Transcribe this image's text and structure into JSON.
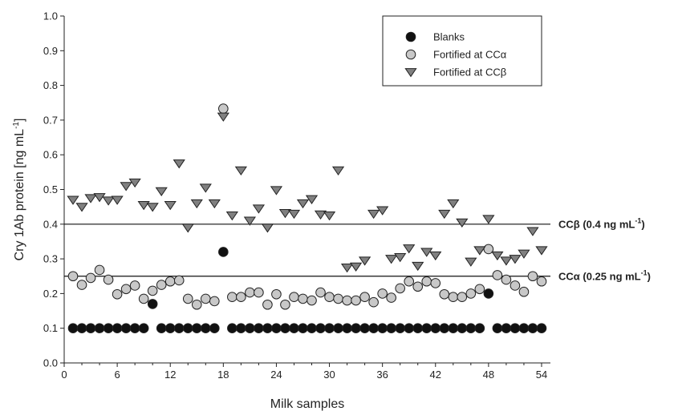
{
  "chart_data": {
    "type": "scatter",
    "xlabel": "Milk samples",
    "ylabel": "Cry 1Ab protein [ng mL",
    "ylabel_sup": "-1",
    "ylabel_close": "]",
    "xlim": [
      0,
      55
    ],
    "ylim": [
      0,
      1.0
    ],
    "xticks": [
      0,
      6,
      12,
      18,
      24,
      30,
      36,
      42,
      48,
      54
    ],
    "yticks": [
      "0.0",
      "0.1",
      "0.2",
      "0.3",
      "0.4",
      "0.5",
      "0.6",
      "0.7",
      "0.8",
      "0.9",
      "1.0"
    ],
    "legend_position": "top-right",
    "reference_lines": [
      {
        "y": 0.4,
        "label": "CCβ (0.4 ng mL",
        "sup": "-1",
        "close": ")"
      },
      {
        "y": 0.25,
        "label": "CCα (0.25 ng mL",
        "sup": "-1",
        "close": ")"
      }
    ],
    "series": [
      {
        "name": "Blanks",
        "marker": "circle",
        "color": "#111111",
        "x": [
          1,
          2,
          3,
          4,
          5,
          6,
          7,
          8,
          9,
          10,
          11,
          12,
          13,
          14,
          15,
          16,
          17,
          18,
          19,
          20,
          21,
          22,
          23,
          24,
          25,
          26,
          27,
          28,
          29,
          30,
          31,
          32,
          33,
          34,
          35,
          36,
          37,
          38,
          39,
          40,
          41,
          42,
          43,
          44,
          45,
          46,
          47,
          48,
          49,
          50,
          51,
          52,
          53,
          54
        ],
        "y": [
          0.1,
          0.1,
          0.1,
          0.1,
          0.1,
          0.1,
          0.1,
          0.1,
          0.1,
          0.17,
          0.1,
          0.1,
          0.1,
          0.1,
          0.1,
          0.1,
          0.1,
          0.32,
          0.1,
          0.1,
          0.1,
          0.1,
          0.1,
          0.1,
          0.1,
          0.1,
          0.1,
          0.1,
          0.1,
          0.1,
          0.1,
          0.1,
          0.1,
          0.1,
          0.1,
          0.1,
          0.1,
          0.1,
          0.1,
          0.1,
          0.1,
          0.1,
          0.1,
          0.1,
          0.1,
          0.1,
          0.1,
          0.2,
          0.1,
          0.1,
          0.1,
          0.1,
          0.1,
          0.1
        ]
      },
      {
        "name": "Fortified at CCα",
        "marker": "circle",
        "color": "#c8c8c8",
        "x": [
          1,
          2,
          3,
          4,
          5,
          6,
          7,
          8,
          9,
          10,
          11,
          12,
          13,
          14,
          15,
          16,
          17,
          18,
          19,
          20,
          21,
          22,
          23,
          24,
          25,
          26,
          27,
          28,
          29,
          30,
          31,
          32,
          33,
          34,
          35,
          36,
          37,
          38,
          39,
          40,
          41,
          42,
          43,
          44,
          45,
          46,
          47,
          48,
          49,
          50,
          51,
          52,
          53,
          54
        ],
        "y": [
          0.25,
          0.225,
          0.245,
          0.268,
          0.24,
          0.198,
          0.213,
          0.223,
          0.185,
          0.208,
          0.225,
          0.235,
          0.238,
          0.185,
          0.168,
          0.185,
          0.178,
          0.733,
          0.19,
          0.19,
          0.203,
          0.203,
          0.168,
          0.198,
          0.168,
          0.19,
          0.185,
          0.18,
          0.203,
          0.19,
          0.185,
          0.18,
          0.18,
          0.19,
          0.175,
          0.2,
          0.188,
          0.215,
          0.235,
          0.22,
          0.235,
          0.23,
          0.198,
          0.19,
          0.19,
          0.2,
          0.213,
          0.328,
          0.253,
          0.24,
          0.223,
          0.205,
          0.25,
          0.235
        ]
      },
      {
        "name": "Fortified  at CCβ",
        "marker": "triangle-down",
        "color": "#808080",
        "x": [
          1,
          2,
          3,
          4,
          5,
          6,
          7,
          8,
          9,
          10,
          11,
          12,
          13,
          14,
          15,
          16,
          17,
          18,
          19,
          20,
          21,
          22,
          23,
          24,
          25,
          26,
          27,
          28,
          29,
          30,
          31,
          32,
          33,
          34,
          35,
          36,
          37,
          38,
          39,
          40,
          41,
          42,
          43,
          44,
          45,
          46,
          47,
          48,
          49,
          50,
          51,
          52,
          53,
          54
        ],
        "y": [
          0.47,
          0.45,
          0.475,
          0.478,
          0.468,
          0.47,
          0.51,
          0.52,
          0.455,
          0.45,
          0.495,
          0.455,
          0.575,
          0.39,
          0.46,
          0.505,
          0.46,
          0.71,
          0.425,
          0.555,
          0.41,
          0.445,
          0.39,
          0.498,
          0.432,
          0.43,
          0.46,
          0.472,
          0.428,
          0.425,
          0.555,
          0.275,
          0.278,
          0.295,
          0.43,
          0.44,
          0.3,
          0.305,
          0.33,
          0.28,
          0.32,
          0.31,
          0.43,
          0.46,
          0.405,
          0.292,
          0.325,
          0.415,
          0.31,
          0.295,
          0.3,
          0.315,
          0.38,
          0.325
        ]
      }
    ]
  }
}
